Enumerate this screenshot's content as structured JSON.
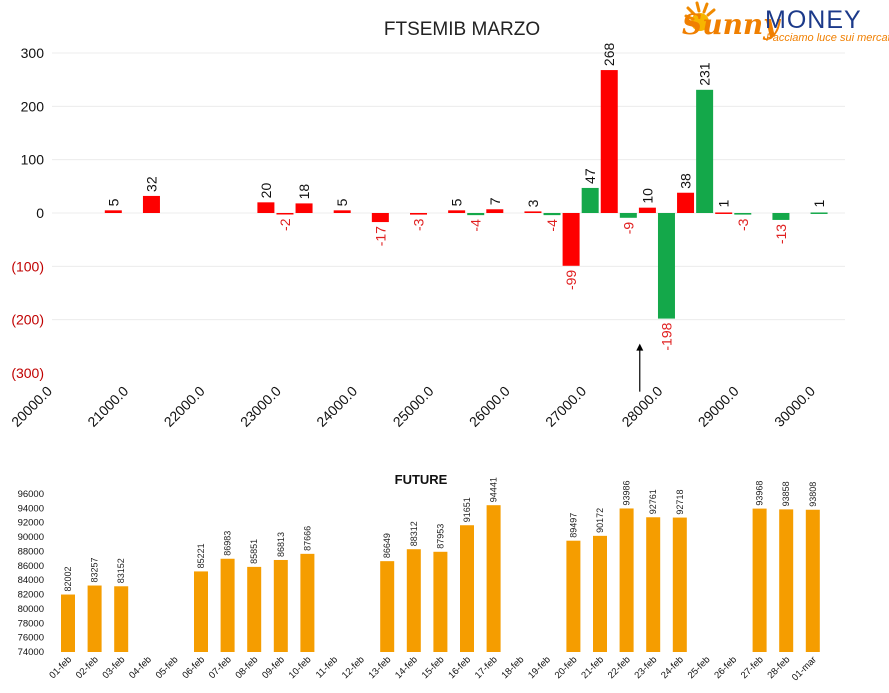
{
  "logo": {
    "sunny": "Sunny",
    "money": "MONEY",
    "tagline": "Facciamo luce sui mercati"
  },
  "colors": {
    "red": "#fe0000",
    "green": "#14a84a",
    "orange": "#f59d00",
    "neg_label": "#e02020"
  },
  "chart_data": [
    {
      "type": "bar",
      "title": "FTSEMIB MARZO",
      "ylim": [
        -300,
        300
      ],
      "yticks": [
        300,
        200,
        100,
        0,
        -100,
        -200,
        -300
      ],
      "ytick_labels": [
        "300",
        "200",
        "100",
        "0",
        "(100)",
        "(200)",
        "(300)"
      ],
      "xlim": [
        20000,
        30000
      ],
      "xtick_labels": [
        "20000.0",
        "21000.0",
        "22000.0",
        "23000.0",
        "24000.0",
        "25000.0",
        "26000.0",
        "27000.0",
        "28000.0",
        "29000.0",
        "30000.0"
      ],
      "bars": [
        {
          "x": 21000,
          "value": 5,
          "color": "red"
        },
        {
          "x": 21500,
          "value": 32,
          "color": "red"
        },
        {
          "x": 23000,
          "value": 20,
          "color": "red"
        },
        {
          "x": 23250,
          "value": -2,
          "color": "red"
        },
        {
          "x": 23500,
          "value": 18,
          "color": "red"
        },
        {
          "x": 24000,
          "value": 5,
          "color": "red"
        },
        {
          "x": 24500,
          "value": -17,
          "color": "red"
        },
        {
          "x": 25000,
          "value": -3,
          "color": "red"
        },
        {
          "x": 25500,
          "value": 5,
          "color": "red"
        },
        {
          "x": 25750,
          "value": -4,
          "color": "green"
        },
        {
          "x": 26000,
          "value": 7,
          "color": "red"
        },
        {
          "x": 26500,
          "value": 3,
          "color": "red"
        },
        {
          "x": 26750,
          "value": -4,
          "color": "green"
        },
        {
          "x": 27000,
          "value": -99,
          "color": "red"
        },
        {
          "x": 27250,
          "value": 47,
          "color": "green"
        },
        {
          "x": 27500,
          "value": 268,
          "color": "red"
        },
        {
          "x": 27750,
          "value": -9,
          "color": "green"
        },
        {
          "x": 28000,
          "value": 10,
          "color": "red"
        },
        {
          "x": 28250,
          "value": -198,
          "color": "green"
        },
        {
          "x": 28500,
          "value": 38,
          "color": "red"
        },
        {
          "x": 28750,
          "value": 231,
          "color": "green"
        },
        {
          "x": 29000,
          "value": 1,
          "color": "red"
        },
        {
          "x": 29250,
          "value": -3,
          "color": "green"
        },
        {
          "x": 29750,
          "value": -13,
          "color": "green"
        },
        {
          "x": 30250,
          "value": 1,
          "color": "green"
        }
      ],
      "arrow": {
        "x": 27900,
        "y_from": -335,
        "y_to": -245
      }
    },
    {
      "type": "bar",
      "title": "FUTURE",
      "ylim": [
        74000,
        96000
      ],
      "yticks": [
        74000,
        76000,
        78000,
        80000,
        82000,
        84000,
        86000,
        88000,
        90000,
        92000,
        94000,
        96000
      ],
      "ytick_labels": [
        "74000",
        "76000",
        "78000",
        "80000",
        "82000",
        "84000",
        "86000",
        "88000",
        "90000",
        "92000",
        "94000",
        "96000"
      ],
      "categories": [
        "01-feb",
        "02-feb",
        "03-feb",
        "04-feb",
        "05-feb",
        "06-feb",
        "07-feb",
        "08-feb",
        "09-feb",
        "10-feb",
        "11-feb",
        "12-feb",
        "13-feb",
        "14-feb",
        "15-feb",
        "16-feb",
        "17-feb",
        "18-feb",
        "19-feb",
        "20-feb",
        "21-feb",
        "22-feb",
        "23-feb",
        "24-feb",
        "25-feb",
        "26-feb",
        "27-feb",
        "28-feb",
        "01-mar"
      ],
      "values": [
        82002,
        83257,
        83152,
        null,
        null,
        85221,
        86983,
        85851,
        86813,
        87666,
        null,
        null,
        86649,
        88312,
        87953,
        91651,
        94441,
        null,
        null,
        89497,
        90172,
        93986,
        92761,
        92718,
        null,
        null,
        93968,
        93858,
        93808
      ],
      "value_labels": [
        "82002",
        "83257",
        "83152",
        "",
        "",
        "85221",
        "86983",
        "85851",
        "86813",
        "87666",
        "",
        "",
        "86649",
        "88312",
        "87953",
        "91651",
        "94441",
        "",
        "",
        "89497",
        "90172",
        "93986",
        "92761",
        "92718",
        "",
        "",
        "93968",
        "93858",
        "93808"
      ]
    }
  ]
}
